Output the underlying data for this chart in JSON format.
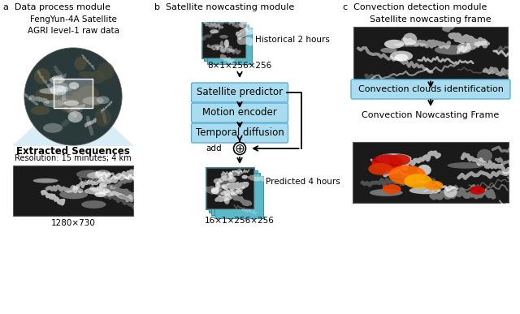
{
  "title_a": "a  Data process module",
  "title_b": "b  Satellite nowcasting module",
  "title_c": "c  Convection detection module",
  "box_color_light": "#aadcf0",
  "box_color_dark": "#6ec6e8",
  "box_edge_color": "#5ab0d8",
  "bg_color": "#ffffff",
  "panel_a": {
    "text_top": "FengYun-4A Satellite\nAGRI level-1 raw data",
    "text_extracted": "Extracted Sequences",
    "text_res": "Resolution: 15 minutes; 4 km",
    "text_size": "1280×730"
  },
  "panel_b": {
    "label_top_img": "Historical 2 hours",
    "label_top_dim": "8×1×256×256",
    "boxes": [
      "Satellite predictor",
      "Motion encoder",
      "Temporal diffusion"
    ],
    "label_add": "add",
    "label_bottom_img": "Predicted 4 hours",
    "label_bottom_dim": "16×1×256×256"
  },
  "panel_c": {
    "label_top": "Satellite nowcasting frame",
    "box": "Convection clouds identification",
    "label_bottom": "Convection Nowcasting Frame"
  }
}
